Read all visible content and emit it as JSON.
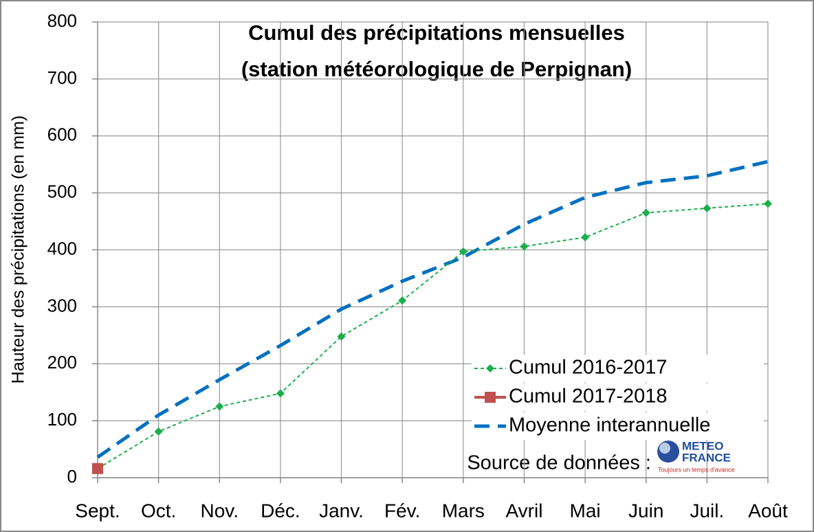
{
  "chart_data": {
    "type": "line",
    "title": "Cumul des précipitations mensuelles",
    "subtitle": "(station météorologique de Perpignan)",
    "y_label": "Hauteur des précipitations (en mm)",
    "categories": [
      "Sept.",
      "Oct.",
      "Nov.",
      "Déc.",
      "Janv.",
      "Fév.",
      "Mars",
      "Avril",
      "Mai",
      "Juin",
      "Juil.",
      "Août"
    ],
    "series": [
      {
        "name": "Cumul 2016-2017",
        "color": "#1aaf4b",
        "values": [
          16,
          81,
          125,
          148,
          248,
          311,
          397,
          406,
          422,
          465,
          473,
          481
        ]
      },
      {
        "name": "Cumul 2017-2018",
        "color": "#c0504d",
        "values": [
          16,
          null,
          null,
          null,
          null,
          null,
          null,
          null,
          null,
          null,
          null,
          null
        ]
      },
      {
        "name": "Moyenne interannuelle",
        "color": "#0070c0",
        "values": [
          36,
          110,
          172,
          232,
          296,
          345,
          387,
          445,
          492,
          518,
          530,
          555
        ]
      }
    ],
    "ylim": [
      0,
      800
    ],
    "yticks": [
      0,
      100,
      200,
      300,
      400,
      500,
      600,
      700,
      800
    ],
    "grid": true,
    "legend": "lower right",
    "source_note": "Source de données :",
    "logo": {
      "line1": "METEO",
      "line2": "FRANCE",
      "tagline": "Toujours un temps d'avance"
    }
  }
}
